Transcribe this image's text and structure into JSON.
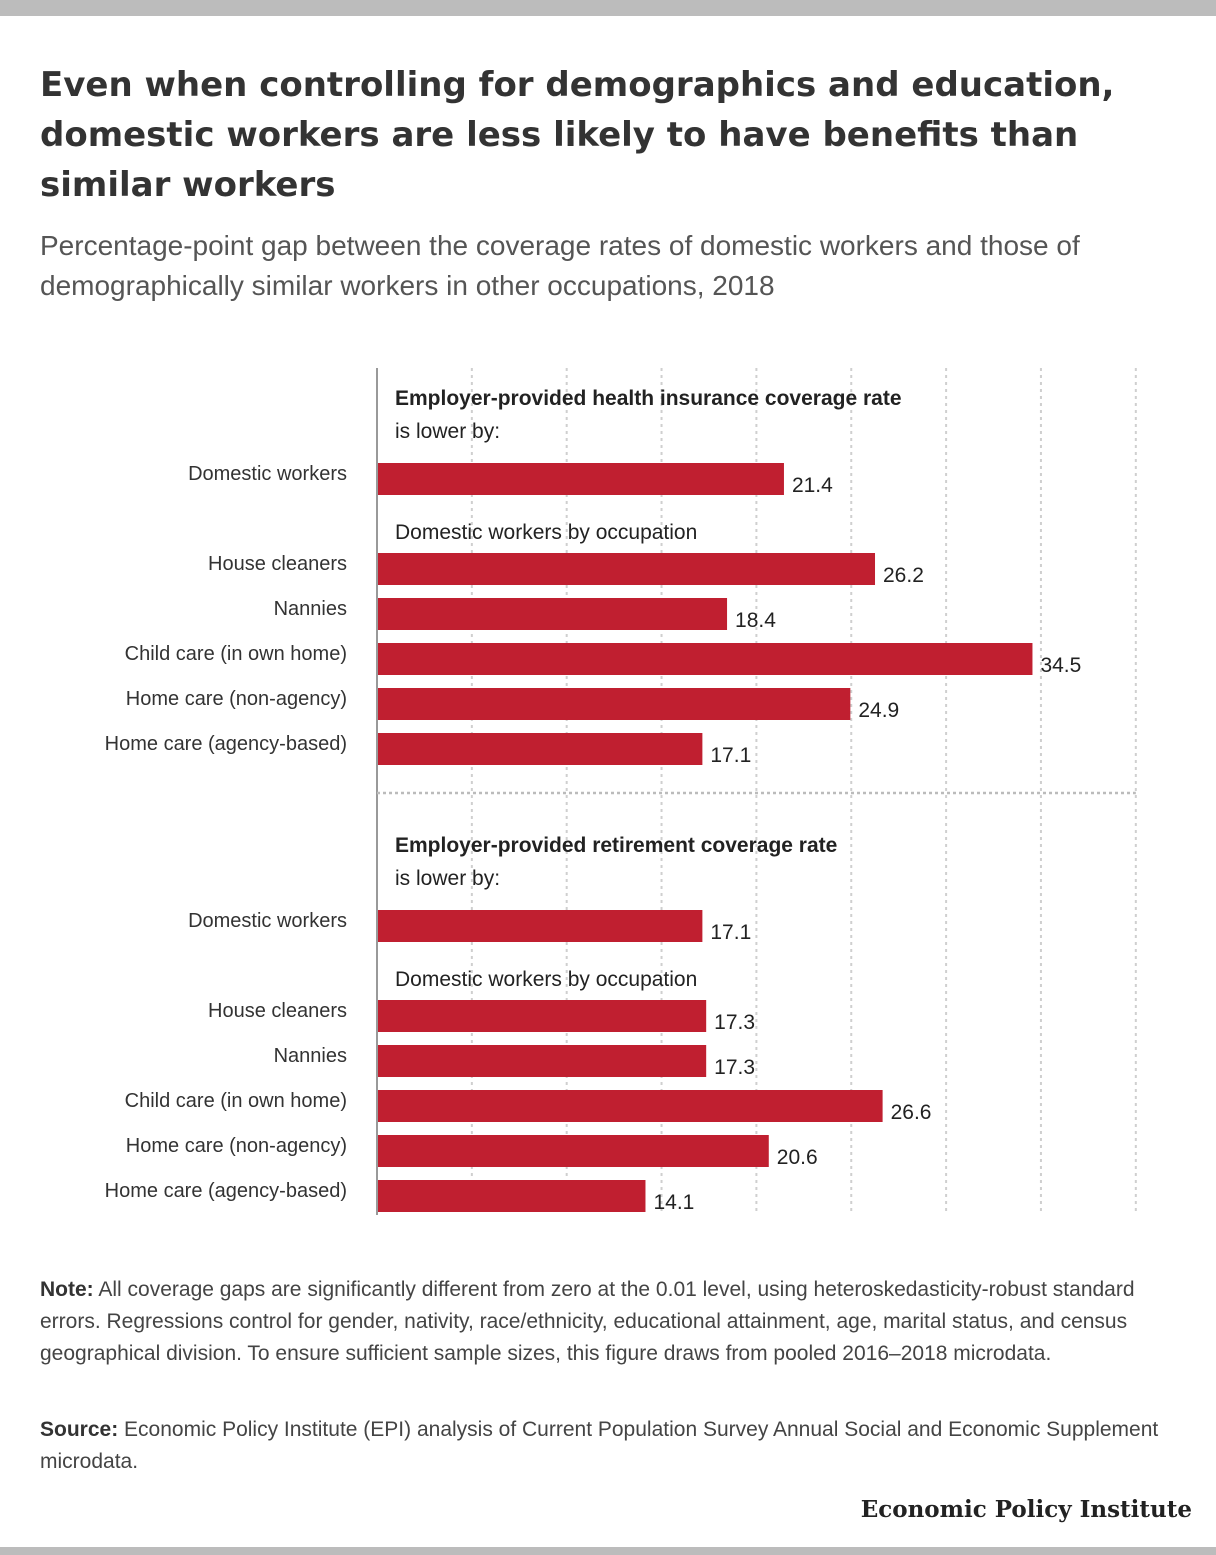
{
  "header": {
    "title": "Even when controlling for demographics and education, domestic workers are less likely to have benefits than similar workers",
    "subtitle": "Percentage-point gap between the coverage rates of domestic workers and those of demographically similar workers in other occupations, 2018"
  },
  "chart_data": {
    "type": "bar",
    "orientation": "horizontal",
    "xlim": [
      0,
      40
    ],
    "grid": true,
    "bar_color": "#c01f30",
    "panels": [
      {
        "title": "Employer-provided health insurance coverage rate",
        "subtitle": "is lower by:",
        "overall": {
          "category": "Domestic workers",
          "value": 21.4,
          "value_label": "21.4"
        },
        "group_label": "Domestic workers by occupation",
        "categories": [
          "House cleaners",
          "Nannies",
          "Child care (in own home)",
          "Home care (non-agency)",
          "Home care (agency-based)"
        ],
        "values": [
          26.2,
          18.4,
          34.5,
          24.9,
          17.1
        ],
        "value_labels": [
          "26.2",
          "18.4",
          "34.5",
          "24.9",
          "17.1"
        ]
      },
      {
        "title": "Employer-provided retirement coverage rate",
        "subtitle": "is lower by:",
        "overall": {
          "category": "Domestic workers",
          "value": 17.1,
          "value_label": "17.1"
        },
        "group_label": "Domestic workers by occupation",
        "categories": [
          "House cleaners",
          "Nannies",
          "Child care (in own home)",
          "Home care (non-agency)",
          "Home care (agency-based)"
        ],
        "values": [
          17.3,
          17.3,
          26.6,
          20.6,
          14.1
        ],
        "value_labels": [
          "17.3",
          "17.3",
          "26.6",
          "20.6",
          "14.1"
        ]
      }
    ]
  },
  "footer": {
    "note_label": "Note:",
    "note_text": "All coverage gaps are significantly different from zero at the 0.01 level, using heteroskedasticity-robust standard errors. Regressions control for gender, nativity, race/ethnicity, educational attainment, age, marital status, and census geographical division. To ensure sufficient sample sizes, this figure draws from pooled 2016–2018 microdata.",
    "source_label": "Source:",
    "source_text": "Economic Policy Institute (EPI) analysis of Current Population Survey Annual Social and Economic Supplement microdata.",
    "brand": "Economic Policy Institute"
  }
}
